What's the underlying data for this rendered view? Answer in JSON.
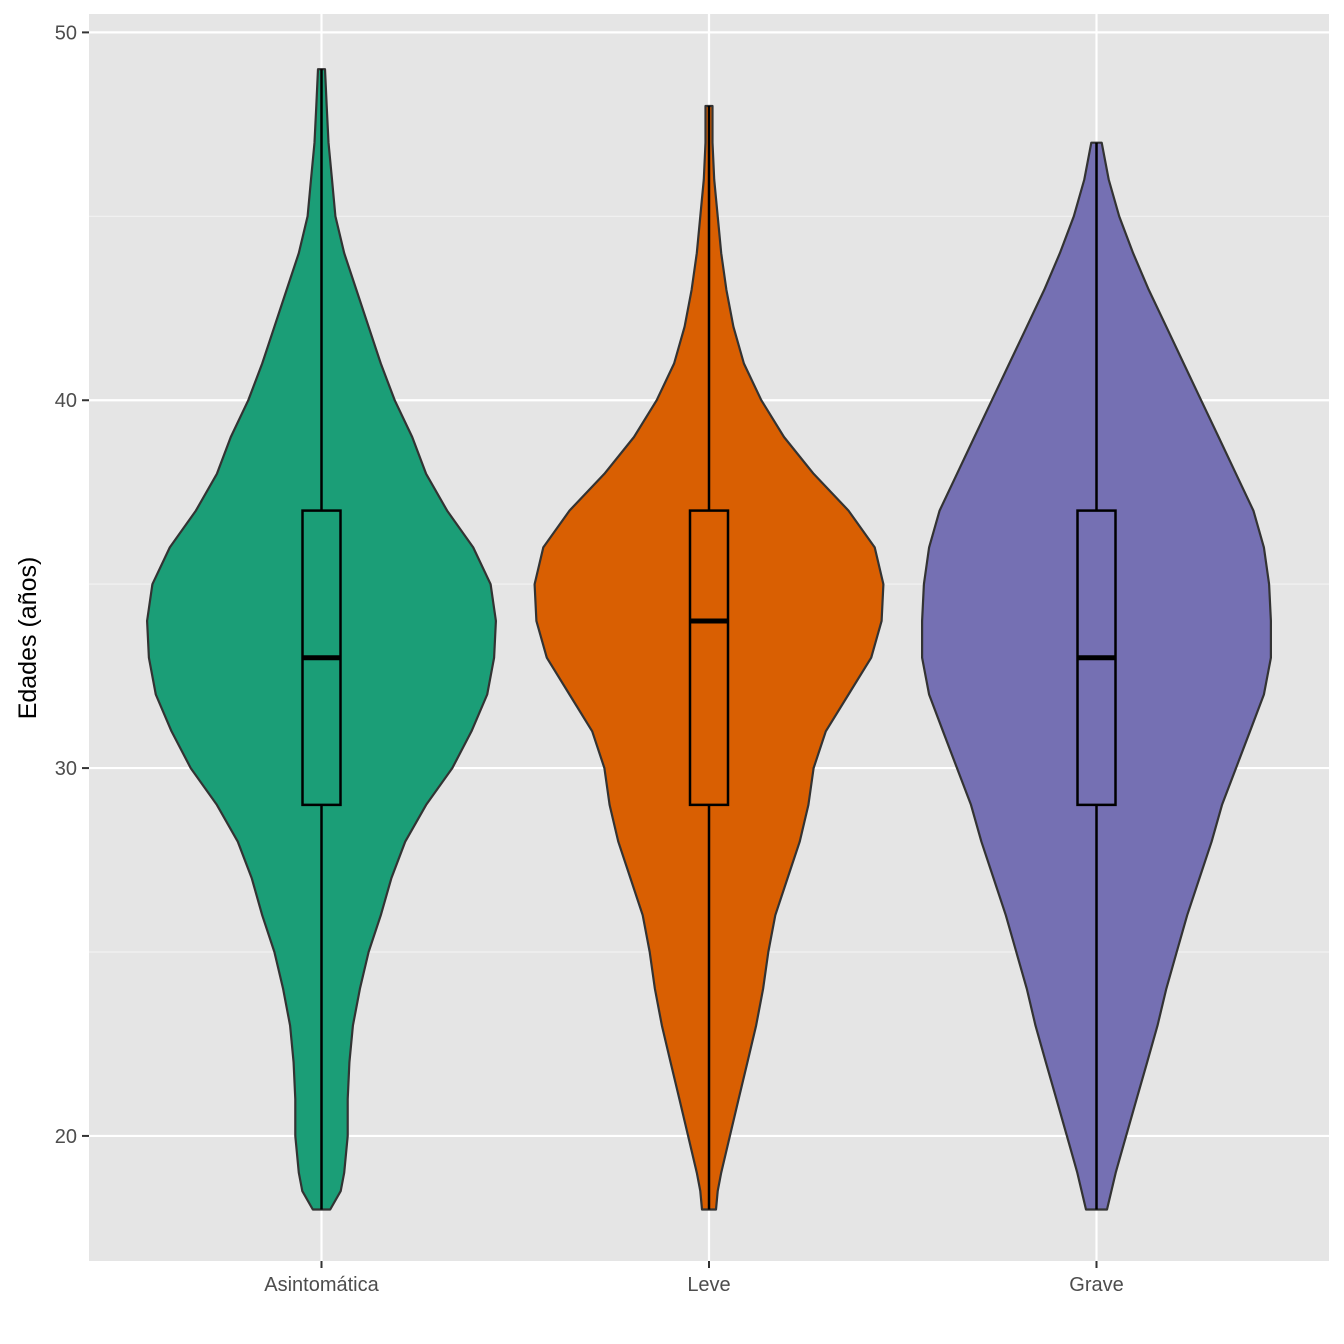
{
  "chart_data": {
    "type": "violin",
    "title": "",
    "xlabel": "",
    "ylabel": "Edades (años)",
    "ylim": [
      16.6,
      50.5
    ],
    "yticks": [
      20,
      30,
      40,
      50
    ],
    "grid": true,
    "legend": "none",
    "categories": [
      "Asintomática",
      "Leve",
      "Grave"
    ],
    "colors": [
      "#1b9e77",
      "#d95f02",
      "#7570b3"
    ],
    "boxplots": [
      {
        "min": 18,
        "q1": 29,
        "median": 33,
        "q3": 37,
        "max": 49
      },
      {
        "min": 18,
        "q1": 29,
        "median": 34,
        "q3": 37,
        "max": 48
      },
      {
        "min": 18,
        "q1": 29,
        "median": 33,
        "q3": 37,
        "max": 47
      }
    ],
    "density_profiles": [
      [
        [
          18,
          0.05
        ],
        [
          18.5,
          0.11
        ],
        [
          19,
          0.13
        ],
        [
          20,
          0.15
        ],
        [
          21,
          0.15
        ],
        [
          22,
          0.16
        ],
        [
          23,
          0.18
        ],
        [
          24,
          0.22
        ],
        [
          25,
          0.27
        ],
        [
          26,
          0.34
        ],
        [
          27,
          0.4
        ],
        [
          28,
          0.48
        ],
        [
          29,
          0.6
        ],
        [
          30,
          0.75
        ],
        [
          31,
          0.86
        ],
        [
          32,
          0.95
        ],
        [
          33,
          0.99
        ],
        [
          34,
          1.0
        ],
        [
          35,
          0.97
        ],
        [
          36,
          0.87
        ],
        [
          37,
          0.72
        ],
        [
          38,
          0.6
        ],
        [
          39,
          0.52
        ],
        [
          40,
          0.42
        ],
        [
          41,
          0.34
        ],
        [
          42,
          0.27
        ],
        [
          43,
          0.2
        ],
        [
          44,
          0.13
        ],
        [
          45,
          0.08
        ],
        [
          46,
          0.06
        ],
        [
          47,
          0.04
        ],
        [
          48,
          0.03
        ],
        [
          49,
          0.02
        ]
      ],
      [
        [
          18,
          0.04
        ],
        [
          18.5,
          0.05
        ],
        [
          19,
          0.07
        ],
        [
          20,
          0.12
        ],
        [
          21,
          0.17
        ],
        [
          22,
          0.22
        ],
        [
          23,
          0.27
        ],
        [
          24,
          0.31
        ],
        [
          25,
          0.34
        ],
        [
          26,
          0.38
        ],
        [
          27,
          0.45
        ],
        [
          28,
          0.52
        ],
        [
          29,
          0.57
        ],
        [
          30,
          0.6
        ],
        [
          31,
          0.67
        ],
        [
          32,
          0.8
        ],
        [
          33,
          0.93
        ],
        [
          34,
          0.99
        ],
        [
          35,
          1.0
        ],
        [
          36,
          0.95
        ],
        [
          37,
          0.8
        ],
        [
          38,
          0.6
        ],
        [
          39,
          0.43
        ],
        [
          40,
          0.3
        ],
        [
          41,
          0.2
        ],
        [
          42,
          0.14
        ],
        [
          43,
          0.1
        ],
        [
          44,
          0.07
        ],
        [
          45,
          0.05
        ],
        [
          46,
          0.03
        ],
        [
          47,
          0.02
        ],
        [
          48,
          0.02
        ]
      ],
      [
        [
          18,
          0.06
        ],
        [
          19,
          0.11
        ],
        [
          20,
          0.17
        ],
        [
          21,
          0.23
        ],
        [
          22,
          0.29
        ],
        [
          23,
          0.35
        ],
        [
          24,
          0.4
        ],
        [
          25,
          0.46
        ],
        [
          26,
          0.52
        ],
        [
          27,
          0.59
        ],
        [
          28,
          0.66
        ],
        [
          29,
          0.72
        ],
        [
          30,
          0.8
        ],
        [
          31,
          0.88
        ],
        [
          32,
          0.96
        ],
        [
          33,
          1.0
        ],
        [
          34,
          1.0
        ],
        [
          35,
          0.99
        ],
        [
          36,
          0.96
        ],
        [
          37,
          0.9
        ],
        [
          38,
          0.8
        ],
        [
          39,
          0.7
        ],
        [
          40,
          0.6
        ],
        [
          41,
          0.5
        ],
        [
          42,
          0.4
        ],
        [
          43,
          0.3
        ],
        [
          44,
          0.21
        ],
        [
          45,
          0.13
        ],
        [
          46,
          0.07
        ],
        [
          47,
          0.03
        ]
      ]
    ]
  }
}
